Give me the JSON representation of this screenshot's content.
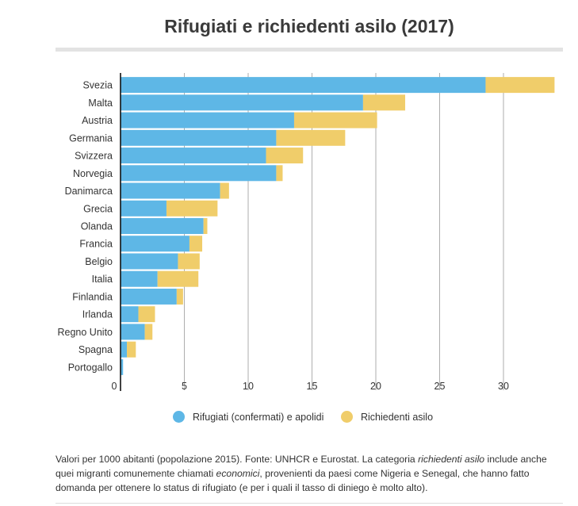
{
  "title": "Rifugiati e richiedenti asilo (2017)",
  "chart_data": {
    "type": "bar",
    "orientation": "horizontal",
    "stacked": true,
    "title": "Rifugiati e richiedenti asilo (2017)",
    "xlabel": "",
    "ylabel": "",
    "xlim": [
      0,
      34
    ],
    "xticks": [
      0,
      5,
      10,
      15,
      20,
      25,
      30
    ],
    "grid": true,
    "categories": [
      "Svezia",
      "Malta",
      "Austria",
      "Germania",
      "Svizzera",
      "Norvegia",
      "Danimarca",
      "Grecia",
      "Olanda",
      "Francia",
      "Belgio",
      "Italia",
      "Finlandia",
      "Irlanda",
      "Regno Unito",
      "Spagna",
      "Portogallo"
    ],
    "series": [
      {
        "name": "Rifugiati (confermati) e apolidi",
        "color": "#5eb7e6",
        "values": [
          28.6,
          19.0,
          13.6,
          12.2,
          11.4,
          12.2,
          7.8,
          3.6,
          6.5,
          5.4,
          4.5,
          2.9,
          4.4,
          1.4,
          1.9,
          0.5,
          0.2
        ]
      },
      {
        "name": "Richiedenti asilo",
        "color": "#f0cd6a",
        "values": [
          5.4,
          3.3,
          6.5,
          5.4,
          2.9,
          0.5,
          0.7,
          4.0,
          0.3,
          1.0,
          1.7,
          3.2,
          0.5,
          1.3,
          0.6,
          0.7,
          0.0
        ]
      }
    ]
  },
  "legend": {
    "items": [
      {
        "label": "Rifugiati (confermati) e apolidi",
        "color": "#5eb7e6"
      },
      {
        "label": "Richiedenti asilo",
        "color": "#f0cd6a"
      }
    ]
  },
  "note": {
    "part1": "Valori per 1000 abitanti (popolazione 2015). Fonte: UNHCR e Eurostat. La categoria ",
    "italic1": "richiedenti asilo",
    "part2": " include anche quei migranti comunemente chiamati ",
    "italic2": "economici",
    "part3": ", provenienti da paesi come Nigeria e Senegal, che hanno fatto domanda per ottenere lo status di rifugiato (e per i quali il tasso di diniego è molto alto)."
  }
}
